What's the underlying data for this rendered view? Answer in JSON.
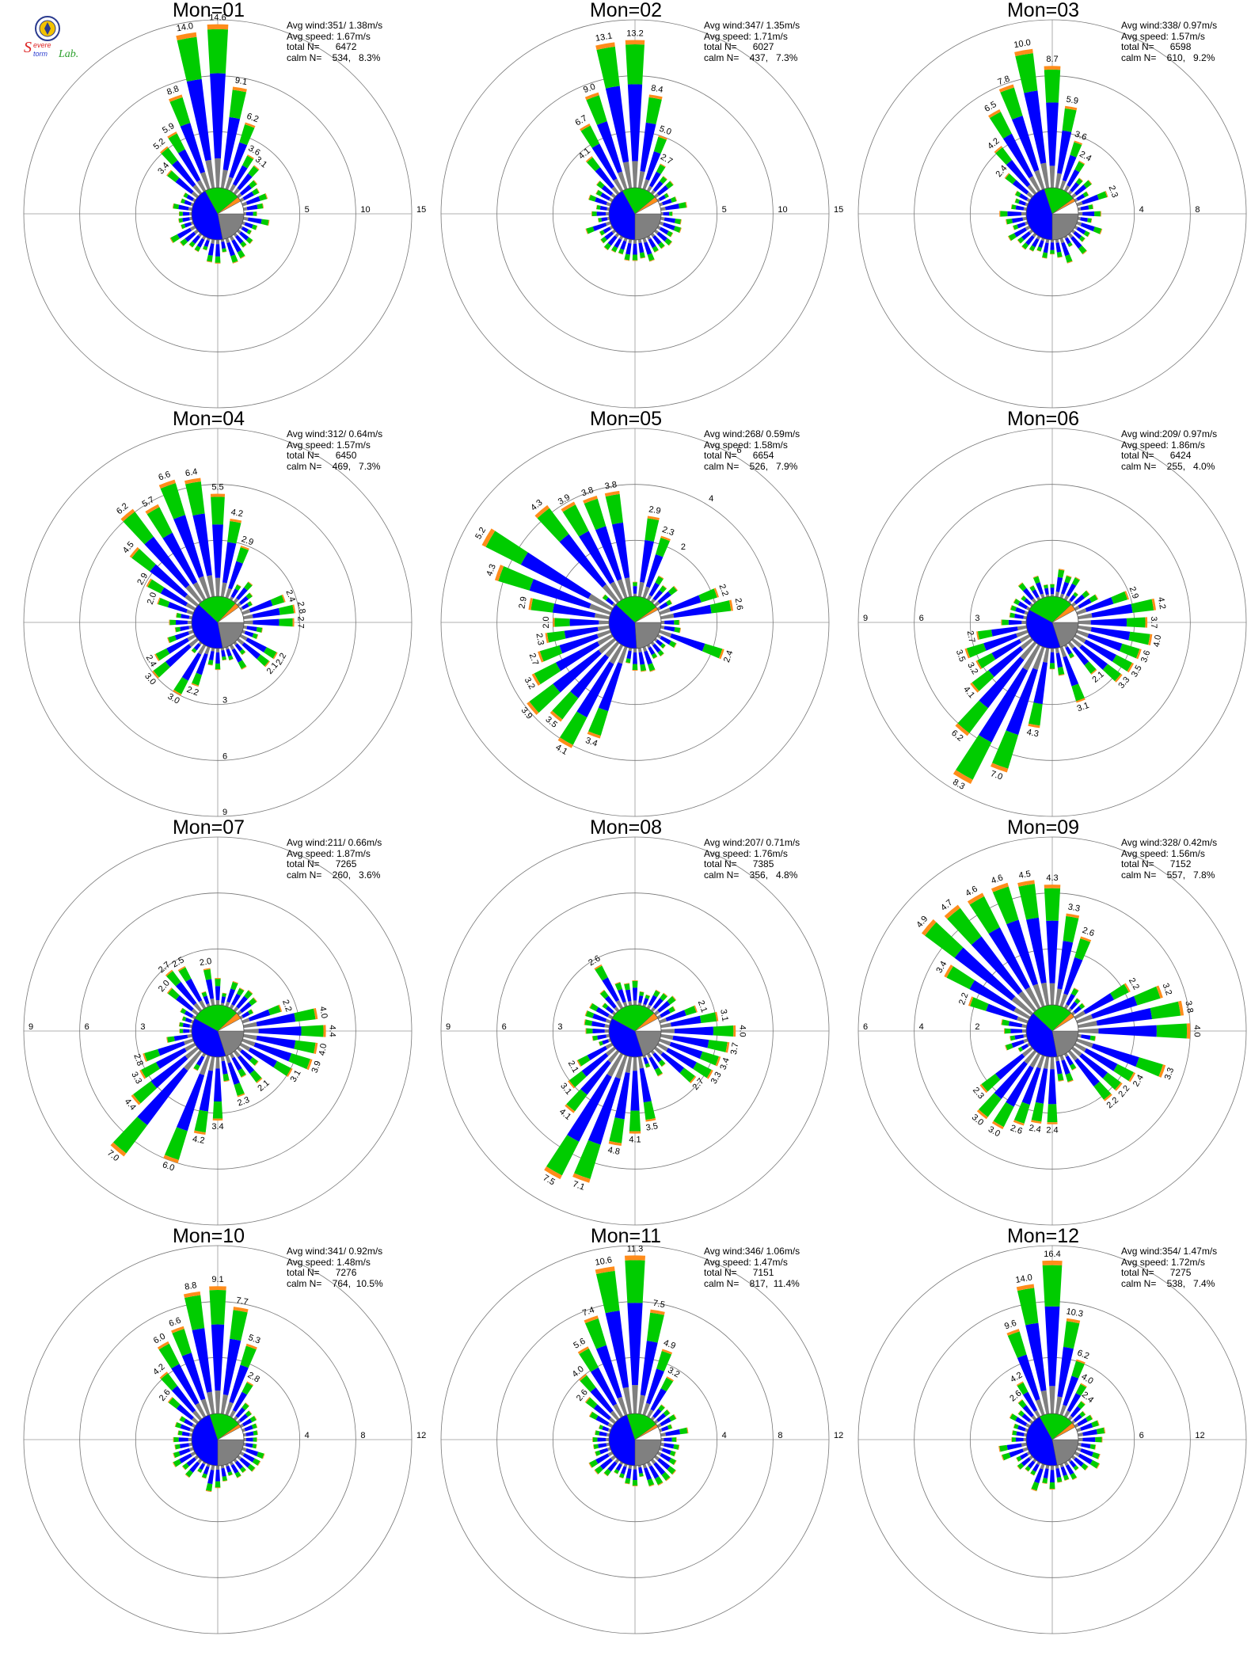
{
  "logo": {
    "text_top": "Severe",
    "text_bottom": "Storm",
    "text_lab": "Lab."
  },
  "colors": {
    "speed_bins": [
      "#808080",
      "#0000ff",
      "#00cc00",
      "#ff8c1a",
      "#ff0000",
      "#8b008b"
    ],
    "calm_slices": [
      "#808080",
      "#0000ff",
      "#00cc00",
      "#ff8c1a",
      "#ffffff"
    ]
  },
  "chart_data": [
    {
      "type": "wind-rose",
      "title": "Mon=01",
      "stats": {
        "avg_wind": "Avg wind:351/ 1.38m/s",
        "avg_speed": "Avg speed: 1.67m/s",
        "total_n": "total N=      6472",
        "calm_n": "calm N=    534,   8.3%"
      },
      "ring_labels": [
        "5",
        "10",
        "15"
      ],
      "ring_label_angle": 90,
      "rmax": 15,
      "calm_fractions": [
        0.22,
        0.45,
        0.22,
        0.03,
        0.08
      ],
      "direction_labels": [
        {
          "angle": 354,
          "value": "14.0"
        },
        {
          "angle": 0,
          "value": "14.6"
        },
        {
          "angle": 10,
          "value": "9.1"
        },
        {
          "angle": 338,
          "value": "8.8"
        },
        {
          "angle": 20,
          "value": "6.2"
        },
        {
          "angle": 325,
          "value": "5.9"
        },
        {
          "angle": 318,
          "value": "5.2"
        },
        {
          "angle": 28,
          "value": "3.6"
        },
        {
          "angle": 310,
          "value": "3.4"
        },
        {
          "angle": 36,
          "value": "3.1"
        }
      ]
    },
    {
      "type": "wind-rose",
      "title": "Mon=02",
      "stats": {
        "avg_wind": "Avg wind:347/ 1.35m/s",
        "avg_speed": "Avg speed: 1.71m/s",
        "total_n": "total N=      6027",
        "calm_n": "calm N=    437,   7.3%"
      },
      "ring_labels": [
        "5",
        "10",
        "15"
      ],
      "ring_label_angle": 90,
      "rmax": 15,
      "calm_fractions": [
        0.25,
        0.42,
        0.22,
        0.03,
        0.08
      ],
      "direction_labels": [
        {
          "angle": 354,
          "value": "13.1"
        },
        {
          "angle": 0,
          "value": "13.2"
        },
        {
          "angle": 10,
          "value": "8.4"
        },
        {
          "angle": 340,
          "value": "9.0"
        },
        {
          "angle": 19,
          "value": "5.0"
        },
        {
          "angle": 331,
          "value": "6.9"
        },
        {
          "angle": 325,
          "value": "6.7"
        },
        {
          "angle": 27,
          "value": "2.7"
        },
        {
          "angle": 316,
          "value": "4.1"
        }
      ]
    },
    {
      "type": "wind-rose",
      "title": "Mon=03",
      "stats": {
        "avg_wind": "Avg wind:338/ 0.97m/s",
        "avg_speed": "Avg speed: 1.57m/s",
        "total_n": "total N=      6598",
        "calm_n": "calm N=    610,   9.2%"
      },
      "ring_labels": [
        "4",
        "8",
        "12"
      ],
      "ring_label_angle": 90,
      "rmax": 12,
      "calm_fractions": [
        0.25,
        0.45,
        0.2,
        0.02,
        0.08
      ],
      "direction_labels": [
        {
          "angle": 350,
          "value": "10.0"
        },
        {
          "angle": 0,
          "value": "8.7"
        },
        {
          "angle": 340,
          "value": "7.8"
        },
        {
          "angle": 333,
          "value": "6.7"
        },
        {
          "angle": 326,
          "value": "6.5"
        },
        {
          "angle": 12,
          "value": "5.9"
        },
        {
          "angle": 318,
          "value": "4.2"
        },
        {
          "angle": 22,
          "value": "3.6"
        },
        {
          "angle": 310,
          "value": "2.4"
        },
        {
          "angle": 30,
          "value": "2.4"
        },
        {
          "angle": 65,
          "value": "2.1"
        },
        {
          "angle": 70,
          "value": "2.3"
        }
      ]
    },
    {
      "type": "wind-rose",
      "title": "Mon=04",
      "stats": {
        "avg_wind": "Avg wind:312/ 0.64m/s",
        "avg_speed": "Avg speed: 1.57m/s",
        "total_n": "total N=      6450",
        "calm_n": "calm N=    469,   7.3%"
      },
      "ring_labels": [
        "3",
        "6",
        "9"
      ],
      "ring_label_angle": 180,
      "rmax": 9,
      "calm_fractions": [
        0.22,
        0.4,
        0.25,
        0.03,
        0.1
      ],
      "direction_labels": [
        {
          "angle": 340,
          "value": "6.6"
        },
        {
          "angle": 350,
          "value": "6.4"
        },
        {
          "angle": 330,
          "value": "5.7"
        },
        {
          "angle": 322,
          "value": "6.2"
        },
        {
          "angle": 0,
          "value": "5.5"
        },
        {
          "angle": 10,
          "value": "4.2"
        },
        {
          "angle": 310,
          "value": "4.5"
        },
        {
          "angle": 20,
          "value": "2.9"
        },
        {
          "angle": 300,
          "value": "2.9"
        },
        {
          "angle": 290,
          "value": "2.0"
        },
        {
          "angle": 65,
          "value": "2.4"
        },
        {
          "angle": 75,
          "value": "2.8"
        },
        {
          "angle": 85,
          "value": "2.7"
        },
        {
          "angle": 115,
          "value": "2.2"
        },
        {
          "angle": 125,
          "value": "2.1"
        },
        {
          "angle": 240,
          "value": "2.4"
        },
        {
          "angle": 225,
          "value": "3.0"
        },
        {
          "angle": 210,
          "value": "3.0"
        },
        {
          "angle": 198,
          "value": "2.2"
        }
      ]
    },
    {
      "type": "wind-rose",
      "title": "Mon=05",
      "stats": {
        "avg_wind": "Avg wind:268/ 0.59m/s",
        "avg_speed": "Avg speed: 1.58m/s",
        "total_n": "total N=      6654",
        "calm_n": "calm N=    526,   7.9%"
      },
      "ring_labels": [
        "2",
        "4",
        "6"
      ],
      "ring_label_angle": 30,
      "rmax": 6,
      "calm_fractions": [
        0.24,
        0.38,
        0.28,
        0.02,
        0.08
      ],
      "direction_labels": [
        {
          "angle": 300,
          "value": "5.2"
        },
        {
          "angle": 318,
          "value": "4.3"
        },
        {
          "angle": 330,
          "value": "3.9"
        },
        {
          "angle": 342,
          "value": "3.8"
        },
        {
          "angle": 354,
          "value": "3.8"
        },
        {
          "angle": 8,
          "value": "2.9"
        },
        {
          "angle": 20,
          "value": "2.3"
        },
        {
          "angle": 290,
          "value": "4.3"
        },
        {
          "angle": 280,
          "value": "2.9"
        },
        {
          "angle": 65,
          "value": "2.2"
        },
        {
          "angle": 75,
          "value": "2.6"
        },
        {
          "angle": 110,
          "value": "2.4"
        },
        {
          "angle": 265,
          "value": "2.0"
        },
        {
          "angle": 255,
          "value": "2.3"
        },
        {
          "angle": 245,
          "value": "2.7"
        },
        {
          "angle": 235,
          "value": "3.2"
        },
        {
          "angle": 225,
          "value": "3.9"
        },
        {
          "angle": 215,
          "value": "3.5"
        },
        {
          "angle": 205,
          "value": "4.1"
        },
        {
          "angle": 195,
          "value": "3.4"
        }
      ]
    },
    {
      "type": "wind-rose",
      "title": "Mon=06",
      "stats": {
        "avg_wind": "Avg wind:209/ 0.97m/s",
        "avg_speed": "Avg speed: 1.86m/s",
        "total_n": "total N=      6424",
        "calm_n": "calm N=    255,   4.0%"
      },
      "ring_labels": [
        "3",
        "6",
        "9"
      ],
      "ring_label_angle": 270,
      "rmax": 9,
      "calm_fractions": [
        0.2,
        0.38,
        0.3,
        0.04,
        0.08
      ],
      "direction_labels": [
        {
          "angle": 205,
          "value": "8.3"
        },
        {
          "angle": 195,
          "value": "7.0"
        },
        {
          "angle": 215,
          "value": "6.2"
        },
        {
          "angle": 185,
          "value": "4.3"
        },
        {
          "angle": 225,
          "value": "4.1"
        },
        {
          "angle": 70,
          "value": "2.9"
        },
        {
          "angle": 80,
          "value": "4.2"
        },
        {
          "angle": 90,
          "value": "3.7"
        },
        {
          "angle": 100,
          "value": "4.0"
        },
        {
          "angle": 110,
          "value": "3.6"
        },
        {
          "angle": 118,
          "value": "3.5"
        },
        {
          "angle": 126,
          "value": "3.3"
        },
        {
          "angle": 140,
          "value": "2.1"
        },
        {
          "angle": 160,
          "value": "3.1"
        },
        {
          "angle": 235,
          "value": "3.2"
        },
        {
          "angle": 245,
          "value": "3.5"
        },
        {
          "angle": 255,
          "value": "2.7"
        }
      ]
    },
    {
      "type": "wind-rose",
      "title": "Mon=07",
      "stats": {
        "avg_wind": "Avg wind:211/ 0.66m/s",
        "avg_speed": "Avg speed: 1.87m/s",
        "total_n": "total N=      7265",
        "calm_n": "calm N=    260,   3.6%"
      },
      "ring_labels": [
        "3",
        "6",
        "9"
      ],
      "ring_label_angle": 270,
      "rmax": 9,
      "calm_fractions": [
        0.2,
        0.38,
        0.3,
        0.04,
        0.08
      ],
      "direction_labels": [
        {
          "angle": 215,
          "value": "7.0"
        },
        {
          "angle": 198,
          "value": "6.0"
        },
        {
          "angle": 225,
          "value": "4.4"
        },
        {
          "angle": 188,
          "value": "4.2"
        },
        {
          "angle": 175,
          "value": "3.4"
        },
        {
          "angle": 235,
          "value": "3.3"
        },
        {
          "angle": 245,
          "value": "2.8"
        },
        {
          "angle": 80,
          "value": "4.0"
        },
        {
          "angle": 85,
          "value": "4.7"
        },
        {
          "angle": 92,
          "value": "4.4"
        },
        {
          "angle": 100,
          "value": "4.0"
        },
        {
          "angle": 108,
          "value": "3.9"
        },
        {
          "angle": 116,
          "value": "3.7"
        },
        {
          "angle": 124,
          "value": "3.1"
        },
        {
          "angle": 140,
          "value": "2.1"
        },
        {
          "angle": 160,
          "value": "2.3"
        },
        {
          "angle": 65,
          "value": "2.2"
        },
        {
          "angle": 345,
          "value": "2.0"
        },
        {
          "angle": 325,
          "value": "2.5"
        },
        {
          "angle": 318,
          "value": "2.7"
        },
        {
          "angle": 305,
          "value": "2.0"
        }
      ]
    },
    {
      "type": "wind-rose",
      "title": "Mon=08",
      "stats": {
        "avg_wind": "Avg wind:207/ 0.71m/s",
        "avg_speed": "Avg speed: 1.76m/s",
        "total_n": "total N=      7385",
        "calm_n": "calm N=    356,   4.8%"
      },
      "ring_labels": [
        "3",
        "6",
        "9"
      ],
      "ring_label_angle": 270,
      "rmax": 9,
      "calm_fractions": [
        0.2,
        0.38,
        0.3,
        0.04,
        0.08
      ],
      "direction_labels": [
        {
          "angle": 205,
          "value": "7.5"
        },
        {
          "angle": 195,
          "value": "7.1"
        },
        {
          "angle": 185,
          "value": "4.8"
        },
        {
          "angle": 215,
          "value": "4.1"
        },
        {
          "angle": 178,
          "value": "4.1"
        },
        {
          "angle": 168,
          "value": "3.5"
        },
        {
          "angle": 225,
          "value": "3.1"
        },
        {
          "angle": 235,
          "value": "2.1"
        },
        {
          "angle": 70,
          "value": "2.1"
        },
        {
          "angle": 80,
          "value": "3.1"
        },
        {
          "angle": 90,
          "value": "4.0"
        },
        {
          "angle": 97,
          "value": "3.7"
        },
        {
          "angle": 104,
          "value": "3.7"
        },
        {
          "angle": 111,
          "value": "3.4"
        },
        {
          "angle": 118,
          "value": "3.3"
        },
        {
          "angle": 126,
          "value": "2.7"
        },
        {
          "angle": 325,
          "value": "2.5"
        },
        {
          "angle": 332,
          "value": "2.6"
        }
      ]
    },
    {
      "type": "wind-rose",
      "title": "Mon=09",
      "stats": {
        "avg_wind": "Avg wind:328/ 0.42m/s",
        "avg_speed": "Avg speed: 1.56m/s",
        "total_n": "total N=      7152",
        "calm_n": "calm N=    557,   7.8%"
      },
      "ring_labels": [
        "2",
        "4",
        "6"
      ],
      "ring_label_angle": 270,
      "rmax": 6,
      "calm_fractions": [
        0.22,
        0.4,
        0.26,
        0.03,
        0.09
      ],
      "direction_labels": [
        {
          "angle": 310,
          "value": "4.9"
        },
        {
          "angle": 320,
          "value": "4.7"
        },
        {
          "angle": 330,
          "value": "4.6"
        },
        {
          "angle": 340,
          "value": "4.6"
        },
        {
          "angle": 350,
          "value": "4.5"
        },
        {
          "angle": 0,
          "value": "4.3"
        },
        {
          "angle": 10,
          "value": "3.3"
        },
        {
          "angle": 20,
          "value": "2.6"
        },
        {
          "angle": 300,
          "value": "3.4"
        },
        {
          "angle": 290,
          "value": "2.2"
        },
        {
          "angle": 60,
          "value": "2.2"
        },
        {
          "angle": 72,
          "value": "3.2"
        },
        {
          "angle": 82,
          "value": "3.8"
        },
        {
          "angle": 92,
          "value": "4.0"
        },
        {
          "angle": 105,
          "value": "3.3"
        },
        {
          "angle": 120,
          "value": "2.4"
        },
        {
          "angle": 130,
          "value": "2.2"
        },
        {
          "angle": 140,
          "value": "2.2"
        },
        {
          "angle": 180,
          "value": "2.4"
        },
        {
          "angle": 188,
          "value": "2.4"
        },
        {
          "angle": 196,
          "value": "2.6"
        },
        {
          "angle": 205,
          "value": "3.0"
        },
        {
          "angle": 215,
          "value": "3.0"
        },
        {
          "angle": 225,
          "value": "2.3"
        }
      ]
    },
    {
      "type": "wind-rose",
      "title": "Mon=10",
      "stats": {
        "avg_wind": "Avg wind:341/ 0.92m/s",
        "avg_speed": "Avg speed: 1.48m/s",
        "total_n": "total N=      7276",
        "calm_n": "calm N=    764,  10.5%"
      },
      "ring_labels": [
        "4",
        "8",
        "12"
      ],
      "ring_label_angle": 90,
      "rmax": 12,
      "calm_fractions": [
        0.25,
        0.45,
        0.2,
        0.02,
        0.08
      ],
      "direction_labels": [
        {
          "angle": 350,
          "value": "8.8"
        },
        {
          "angle": 0,
          "value": "9.1"
        },
        {
          "angle": 10,
          "value": "7.7"
        },
        {
          "angle": 340,
          "value": "6.6"
        },
        {
          "angle": 332,
          "value": "6.3"
        },
        {
          "angle": 325,
          "value": "6.0"
        },
        {
          "angle": 20,
          "value": "5.3"
        },
        {
          "angle": 318,
          "value": "4.2"
        },
        {
          "angle": 28,
          "value": "2.8"
        },
        {
          "angle": 310,
          "value": "2.6"
        }
      ]
    },
    {
      "type": "wind-rose",
      "title": "Mon=11",
      "stats": {
        "avg_wind": "Avg wind:346/ 1.06m/s",
        "avg_speed": "Avg speed: 1.47m/s",
        "total_n": "total N=      7151",
        "calm_n": "calm N=    817,  11.4%"
      },
      "ring_labels": [
        "4",
        "8",
        "12"
      ],
      "ring_label_angle": 90,
      "rmax": 12,
      "calm_fractions": [
        0.25,
        0.45,
        0.2,
        0.02,
        0.08
      ],
      "direction_labels": [
        {
          "angle": 0,
          "value": "11.3"
        },
        {
          "angle": 350,
          "value": "10.6"
        },
        {
          "angle": 10,
          "value": "7.5"
        },
        {
          "angle": 340,
          "value": "7.4"
        },
        {
          "angle": 332,
          "value": "6.5"
        },
        {
          "angle": 325,
          "value": "5.6"
        },
        {
          "angle": 20,
          "value": "4.9"
        },
        {
          "angle": 318,
          "value": "4.0"
        },
        {
          "angle": 28,
          "value": "3.2"
        },
        {
          "angle": 310,
          "value": "2.6"
        }
      ]
    },
    {
      "type": "wind-rose",
      "title": "Mon=12",
      "stats": {
        "avg_wind": "Avg wind:354/ 1.47m/s",
        "avg_speed": "Avg speed: 1.72m/s",
        "total_n": "total N=      7275",
        "calm_n": "calm N=    538,   7.4%"
      },
      "ring_labels": [
        "6",
        "12",
        "18"
      ],
      "ring_label_angle": 90,
      "rmax": 18,
      "calm_fractions": [
        0.22,
        0.45,
        0.22,
        0.03,
        0.08
      ],
      "direction_labels": [
        {
          "angle": 0,
          "value": "16.4"
        },
        {
          "angle": 350,
          "value": "14.0"
        },
        {
          "angle": 10,
          "value": "10.3"
        },
        {
          "angle": 340,
          "value": "9.6"
        },
        {
          "angle": 20,
          "value": "6.2"
        },
        {
          "angle": 332,
          "value": "5.9"
        },
        {
          "angle": 28,
          "value": "4.0"
        },
        {
          "angle": 325,
          "value": "4.2"
        },
        {
          "angle": 318,
          "value": "2.6"
        },
        {
          "angle": 36,
          "value": "2.4"
        }
      ]
    }
  ]
}
